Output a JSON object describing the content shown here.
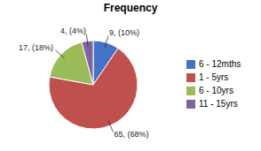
{
  "chart_data": {
    "type": "pie",
    "title": "Frequency",
    "categories": [
      "6 - 12mths",
      "1 - 5yrs",
      "6 - 10yrs",
      "11 - 15yrs"
    ],
    "values": [
      9,
      65,
      17,
      4
    ],
    "value_labels": [
      "9, (10%)",
      "65, (68%)",
      "17, (18%)",
      "4, (4%)"
    ],
    "colors": [
      "#4472C4",
      "#C0504D",
      "#9BBB59",
      "#8064A2"
    ],
    "legend": "right",
    "data_labels": true
  }
}
